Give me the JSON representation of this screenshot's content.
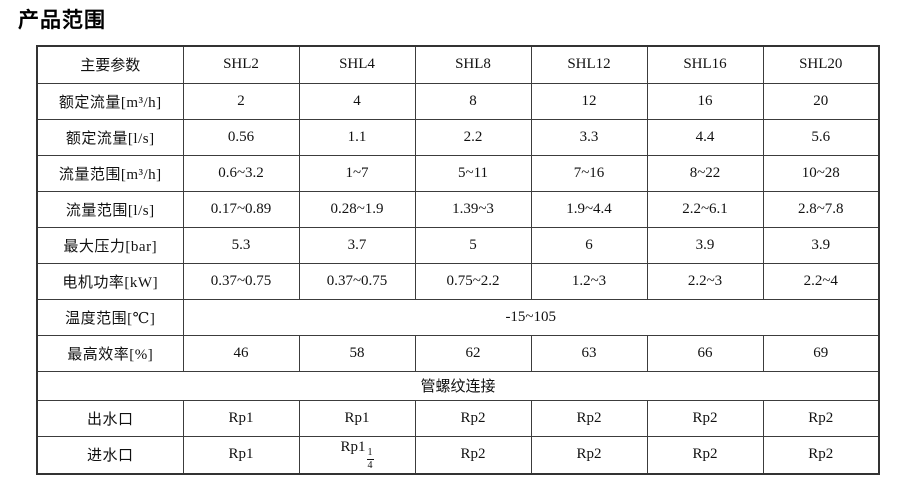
{
  "title": "产品范围",
  "table": {
    "header": [
      "主要参数",
      "SHL2",
      "SHL4",
      "SHL8",
      "SHL12",
      "SHL16",
      "SHL20"
    ],
    "rows": [
      {
        "label": "额定流量[m³/h]",
        "values": [
          "2",
          "4",
          "8",
          "12",
          "16",
          "20"
        ]
      },
      {
        "label": "额定流量[l/s]",
        "values": [
          "0.56",
          "1.1",
          "2.2",
          "3.3",
          "4.4",
          "5.6"
        ]
      },
      {
        "label": "流量范围[m³/h]",
        "values": [
          "0.6~3.2",
          "1~7",
          "5~11",
          "7~16",
          "8~22",
          "10~28"
        ]
      },
      {
        "label": "流量范围[l/s]",
        "values": [
          "0.17~0.89",
          "0.28~1.9",
          "1.39~3",
          "1.9~4.4",
          "2.2~6.1",
          "2.8~7.8"
        ]
      },
      {
        "label": "最大压力[bar]",
        "values": [
          "5.3",
          "3.7",
          "5",
          "6",
          "3.9",
          "3.9"
        ]
      },
      {
        "label": "电机功率[kW]",
        "values": [
          "0.37~0.75",
          "0.37~0.75",
          "0.75~2.2",
          "1.2~3",
          "2.2~3",
          "2.2~4"
        ]
      },
      {
        "label": "温度范围[℃]",
        "span_value": "-15~105"
      },
      {
        "label": "最高效率[%]",
        "values": [
          "46",
          "58",
          "62",
          "63",
          "66",
          "69"
        ]
      },
      {
        "section": "管螺纹连接"
      },
      {
        "label": "出水口",
        "values": [
          "Rp1",
          "Rp1",
          "Rp2",
          "Rp2",
          "Rp2",
          "Rp2"
        ]
      },
      {
        "label": "进水口",
        "last": true,
        "values": [
          "Rp1",
          {
            "base": "Rp1",
            "frac_num": "1",
            "frac_den": "4"
          },
          "Rp2",
          "Rp2",
          "Rp2",
          "Rp2"
        ]
      }
    ]
  }
}
